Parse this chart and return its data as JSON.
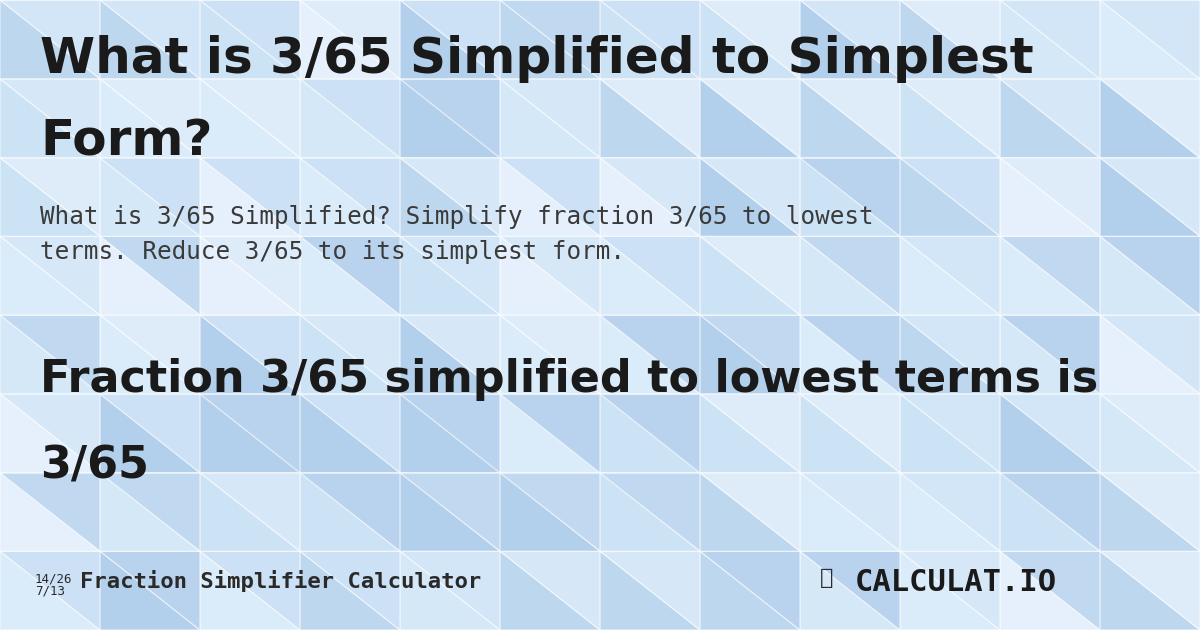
{
  "title_line1": "What is 3/65 Simplified to Simplest",
  "title_line2": "Form?",
  "subtitle_line1": "What is 3/65 Simplified? Simplify fraction 3/65 to lowest",
  "subtitle_line2": "terms. Reduce 3/65 to its simplest form.",
  "result_line1": "Fraction 3/65 simplified to lowest terms is",
  "result_line2": "3/65",
  "footer_fraction_top": "14/26",
  "footer_fraction_bottom": "7/13",
  "footer_text": "Fraction Simplifier Calculator",
  "footer_logo": "CALCULAT.IO",
  "bg_color": "#cce0f5",
  "title_color": "#1a1a1a",
  "subtitle_color": "#3a3a3a",
  "result_color": "#1a1a1a",
  "footer_color": "#2a2a2a",
  "tri_colors": [
    "#b8d4ed",
    "#cde3f5",
    "#d8ecfa",
    "#a8c8e8",
    "#e0f0fb",
    "#f0f8ff"
  ],
  "fig_width": 12.0,
  "fig_height": 6.3
}
